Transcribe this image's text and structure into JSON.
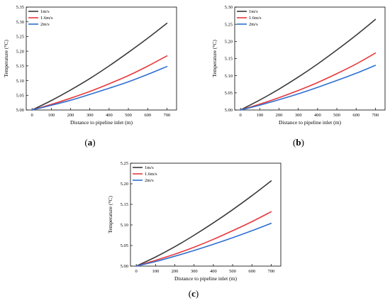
{
  "chart_data": [
    {
      "type": "line",
      "panel_label": "(a)",
      "panel_letter": "a",
      "xlabel": "Distance to pipeline inlet (m)",
      "ylabel": "Temperature (°C)",
      "xlim": [
        0,
        700
      ],
      "ylim": [
        5.0,
        5.35
      ],
      "xticks": [
        0,
        100,
        200,
        300,
        400,
        500,
        600,
        700
      ],
      "yticks": [
        5.0,
        5.05,
        5.1,
        5.15,
        5.2,
        5.25,
        5.3,
        5.35
      ],
      "ytick_labels": [
        "5.00",
        "5.05",
        "5.10",
        "5.15",
        "5.20",
        "5.25",
        "5.30",
        "5.35"
      ],
      "grid": false,
      "legend_position": "top-left",
      "series": [
        {
          "name": "1m/s",
          "color": "#3a3a3a",
          "x": [
            0,
            100,
            200,
            300,
            400,
            500,
            600,
            700
          ],
          "y": [
            5.0,
            5.032,
            5.068,
            5.107,
            5.15,
            5.196,
            5.244,
            5.295
          ]
        },
        {
          "name": "1.6m/s",
          "color": "#e8383b",
          "x": [
            0,
            100,
            200,
            300,
            400,
            500,
            600,
            700
          ],
          "y": [
            5.0,
            5.019,
            5.04,
            5.063,
            5.089,
            5.117,
            5.149,
            5.184
          ]
        },
        {
          "name": "2m/s",
          "color": "#2e6fd0",
          "x": [
            0,
            100,
            200,
            300,
            400,
            500,
            600,
            700
          ],
          "y": [
            5.0,
            5.016,
            5.033,
            5.053,
            5.074,
            5.096,
            5.121,
            5.148
          ]
        }
      ]
    },
    {
      "type": "line",
      "panel_label": "(b)",
      "panel_letter": "b",
      "xlabel": "Distance to pipeline inlet (m)",
      "ylabel": "Temperature (°C)",
      "xlim": [
        0,
        700
      ],
      "ylim": [
        5.0,
        5.3
      ],
      "xticks": [
        0,
        100,
        200,
        300,
        400,
        500,
        600,
        700
      ],
      "yticks": [
        5.0,
        5.05,
        5.1,
        5.15,
        5.2,
        5.25,
        5.3
      ],
      "ytick_labels": [
        "5.00",
        "5.05",
        "5.10",
        "5.15",
        "5.20",
        "5.25",
        "5.30"
      ],
      "grid": false,
      "legend_position": "top-left",
      "series": [
        {
          "name": "1m/s",
          "color": "#3a3a3a",
          "x": [
            0,
            100,
            200,
            300,
            400,
            500,
            600,
            700
          ],
          "y": [
            5.0,
            5.029,
            5.061,
            5.096,
            5.134,
            5.175,
            5.218,
            5.264
          ]
        },
        {
          "name": "1.6m/s",
          "color": "#e8383b",
          "x": [
            0,
            100,
            200,
            300,
            400,
            500,
            600,
            700
          ],
          "y": [
            5.0,
            5.017,
            5.036,
            5.057,
            5.08,
            5.106,
            5.134,
            5.166
          ]
        },
        {
          "name": "2m/s",
          "color": "#2e6fd0",
          "x": [
            0,
            100,
            200,
            300,
            400,
            500,
            600,
            700
          ],
          "y": [
            5.0,
            5.014,
            5.03,
            5.047,
            5.066,
            5.086,
            5.107,
            5.13
          ]
        }
      ]
    },
    {
      "type": "line",
      "panel_label": "(c)",
      "panel_letter": "c",
      "xlabel": "Distance to pipeline inlet (m)",
      "ylabel": "Temperature (°C)",
      "xlim": [
        0,
        700
      ],
      "ylim": [
        5.0,
        5.25
      ],
      "xticks": [
        0,
        100,
        200,
        300,
        400,
        500,
        600,
        700
      ],
      "yticks": [
        5.0,
        5.05,
        5.1,
        5.15,
        5.2,
        5.25
      ],
      "ytick_labels": [
        "5.00",
        "5.05",
        "5.10",
        "5.15",
        "5.20",
        "5.25"
      ],
      "grid": false,
      "legend_position": "top-left",
      "series": [
        {
          "name": "1m/s",
          "color": "#3a3a3a",
          "x": [
            0,
            100,
            200,
            300,
            400,
            500,
            600,
            700
          ],
          "y": [
            5.0,
            5.022,
            5.047,
            5.075,
            5.105,
            5.137,
            5.171,
            5.207
          ]
        },
        {
          "name": "1.6m/s",
          "color": "#e8383b",
          "x": [
            0,
            100,
            200,
            300,
            400,
            500,
            600,
            700
          ],
          "y": [
            5.0,
            5.014,
            5.029,
            5.046,
            5.065,
            5.086,
            5.108,
            5.132
          ]
        },
        {
          "name": "2m/s",
          "color": "#2e6fd0",
          "x": [
            0,
            100,
            200,
            300,
            400,
            500,
            600,
            700
          ],
          "y": [
            5.0,
            5.011,
            5.024,
            5.038,
            5.053,
            5.069,
            5.086,
            5.104
          ]
        }
      ]
    }
  ]
}
